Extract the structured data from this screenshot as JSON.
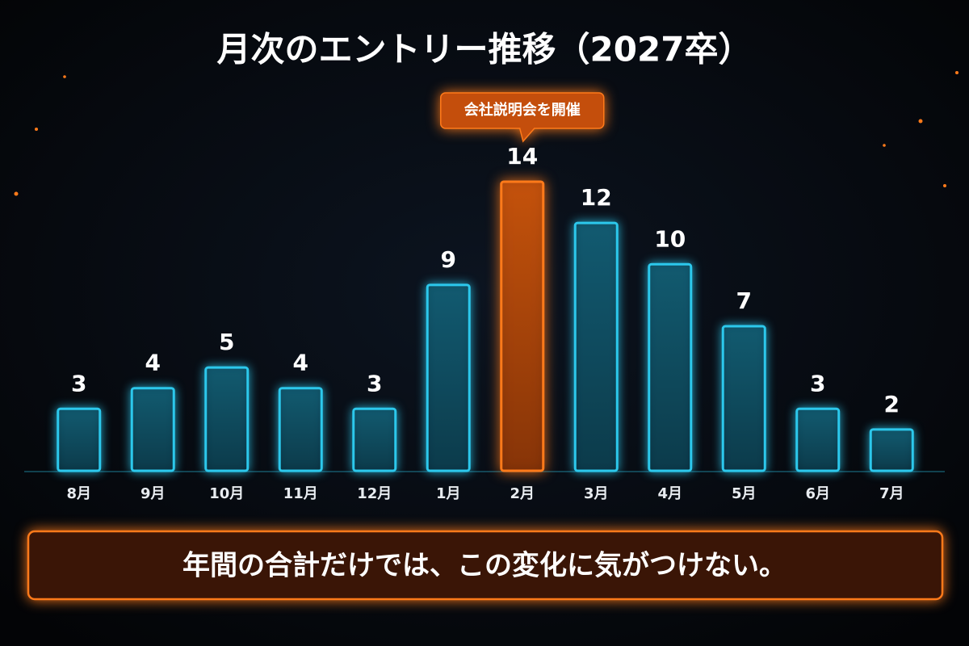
{
  "chart_data": {
    "type": "bar",
    "title": "月次のエントリー推移（2027卒）",
    "categories": [
      "8月",
      "9月",
      "10月",
      "11月",
      "12月",
      "1月",
      "2月",
      "3月",
      "4月",
      "5月",
      "6月",
      "7月"
    ],
    "values": [
      3,
      4,
      5,
      4,
      3,
      9,
      14,
      12,
      10,
      7,
      3,
      2
    ],
    "color": "#2cc8ec",
    "highlight_color": "#ff7a1a",
    "annotation": {
      "text": "会社説明会を開催",
      "index": 6
    },
    "footer": "年間の合計だけでは、この変化に気がつけない。"
  }
}
